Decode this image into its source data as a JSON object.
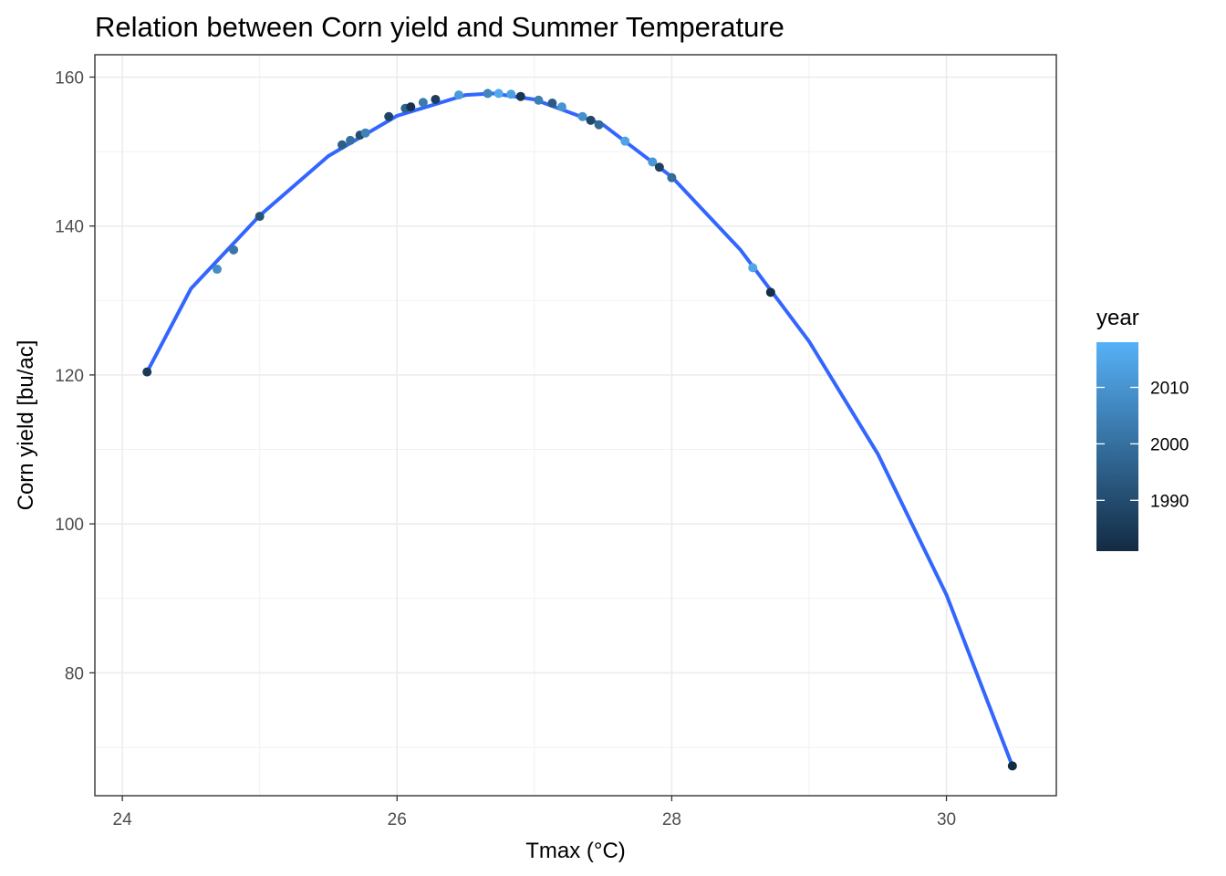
{
  "chart_data": {
    "type": "scatter",
    "title": "Relation between Corn yield and Summer Temperature",
    "xlabel": "Tmax (°C)",
    "ylabel": "Corn yield [bu/ac]",
    "xlim": [
      23.8,
      30.8
    ],
    "ylim": [
      63.5,
      163
    ],
    "x_ticks": [
      24,
      26,
      28,
      30
    ],
    "y_ticks": [
      80,
      100,
      120,
      140,
      160
    ],
    "grid": true,
    "fit": {
      "type": "quadratic",
      "x": [
        24.18,
        24.5,
        25.0,
        25.5,
        26.0,
        26.5,
        26.7,
        27.0,
        27.5,
        28.0,
        28.5,
        29.0,
        29.5,
        30.0,
        30.48
      ],
      "y": [
        120.4,
        131.6,
        141.4,
        149.4,
        154.8,
        157.6,
        157.8,
        157.0,
        153.6,
        146.6,
        136.8,
        124.5,
        109.4,
        90.5,
        67.5
      ],
      "color": "#3366ff"
    },
    "points": [
      {
        "x": 24.18,
        "y": 120.4,
        "year": 1985
      },
      {
        "x": 24.69,
        "y": 134.2,
        "year": 2008
      },
      {
        "x": 24.81,
        "y": 136.8,
        "year": 2002
      },
      {
        "x": 25.0,
        "y": 141.3,
        "year": 1992
      },
      {
        "x": 25.6,
        "y": 150.9,
        "year": 1995
      },
      {
        "x": 25.66,
        "y": 151.5,
        "year": 2000
      },
      {
        "x": 25.73,
        "y": 152.2,
        "year": 1990
      },
      {
        "x": 25.77,
        "y": 152.5,
        "year": 2005
      },
      {
        "x": 25.94,
        "y": 154.7,
        "year": 1988
      },
      {
        "x": 26.06,
        "y": 155.8,
        "year": 1996
      },
      {
        "x": 26.1,
        "y": 156.0,
        "year": 1983
      },
      {
        "x": 26.19,
        "y": 156.6,
        "year": 2003
      },
      {
        "x": 26.28,
        "y": 157.0,
        "year": 1986
      },
      {
        "x": 26.45,
        "y": 157.6,
        "year": 2012
      },
      {
        "x": 26.66,
        "y": 157.8,
        "year": 2006
      },
      {
        "x": 26.74,
        "y": 157.8,
        "year": 2016
      },
      {
        "x": 26.83,
        "y": 157.7,
        "year": 2013
      },
      {
        "x": 26.9,
        "y": 157.4,
        "year": 1984
      },
      {
        "x": 27.03,
        "y": 156.9,
        "year": 2004
      },
      {
        "x": 27.13,
        "y": 156.5,
        "year": 1994
      },
      {
        "x": 27.2,
        "y": 156.0,
        "year": 2010
      },
      {
        "x": 27.35,
        "y": 154.7,
        "year": 2009
      },
      {
        "x": 27.41,
        "y": 154.2,
        "year": 1989
      },
      {
        "x": 27.47,
        "y": 153.6,
        "year": 1998
      },
      {
        "x": 27.66,
        "y": 151.4,
        "year": 2014
      },
      {
        "x": 27.86,
        "y": 148.6,
        "year": 2011
      },
      {
        "x": 27.91,
        "y": 147.9,
        "year": 1987
      },
      {
        "x": 28.0,
        "y": 146.5,
        "year": 1999
      },
      {
        "x": 28.59,
        "y": 134.4,
        "year": 2015
      },
      {
        "x": 28.72,
        "y": 131.1,
        "year": 1982
      },
      {
        "x": 30.48,
        "y": 67.5,
        "year": 1981
      }
    ],
    "legend": {
      "title": "year",
      "placement": "right",
      "type": "colorbar",
      "range": [
        1981,
        2018
      ],
      "ticks": [
        1990,
        2000,
        2010
      ],
      "low_color": "#132b43",
      "high_color": "#56b1f7"
    }
  }
}
